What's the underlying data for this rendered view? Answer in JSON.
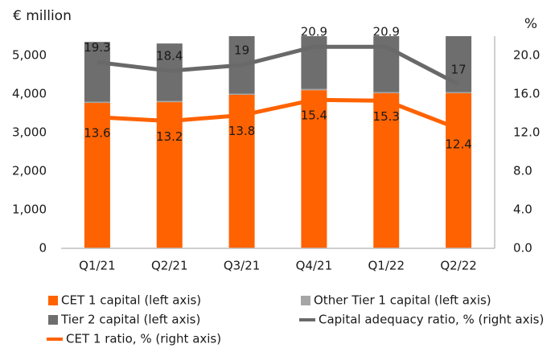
{
  "chart_data": {
    "type": "bar",
    "y_label": "€ million",
    "y2_label": "%",
    "categories": [
      "Q1/21",
      "Q2/21",
      "Q3/21",
      "Q4/21",
      "Q1/22",
      "Q2/22"
    ],
    "series": [
      {
        "name": "CET 1 capital (left axis)",
        "color": "#ff6200",
        "kind": "bar",
        "values": [
          3770,
          3790,
          3980,
          4100,
          4020,
          4020
        ]
      },
      {
        "name": "Other Tier 1 capital (left axis)",
        "color": "#a6a6a6",
        "kind": "bar",
        "values": [
          30,
          30,
          30,
          30,
          30,
          30
        ]
      },
      {
        "name": "Tier 2 capital (left axis)",
        "color": "#6e6e6e",
        "kind": "bar",
        "values": [
          1550,
          1490,
          1490,
          1370,
          1450,
          1450
        ]
      },
      {
        "name": "Capital adequacy ratio, % (right axis)",
        "color": "#696969",
        "kind": "line",
        "axis": "y2",
        "values": [
          19.3,
          18.4,
          19.0,
          20.9,
          20.9,
          17.0
        ]
      },
      {
        "name": "CET 1 ratio, % (right axis)",
        "color": "#ff6200",
        "kind": "line",
        "axis": "y2",
        "values": [
          13.6,
          13.2,
          13.8,
          15.4,
          15.3,
          12.4
        ]
      }
    ],
    "ylim": [
      0,
      5500
    ],
    "yticks": [
      0,
      {
        "value": 1000,
        "label": "1,000"
      },
      {
        "value": 2000,
        "label": "2,000"
      },
      {
        "value": 3000,
        "label": "3,000"
      },
      {
        "value": 4000,
        "label": "4,000"
      },
      {
        "value": 5000,
        "label": "5,000"
      }
    ],
    "y2lim": [
      0,
      22
    ],
    "y2ticks": [
      {
        "value": 0,
        "label": "0.0"
      },
      {
        "value": 4,
        "label": "4.0"
      },
      {
        "value": 8,
        "label": "8.0"
      },
      {
        "value": 12,
        "label": "12.0"
      },
      {
        "value": 16,
        "label": "16.0"
      },
      {
        "value": 20,
        "label": "20.0"
      }
    ],
    "legend": "bottom"
  }
}
